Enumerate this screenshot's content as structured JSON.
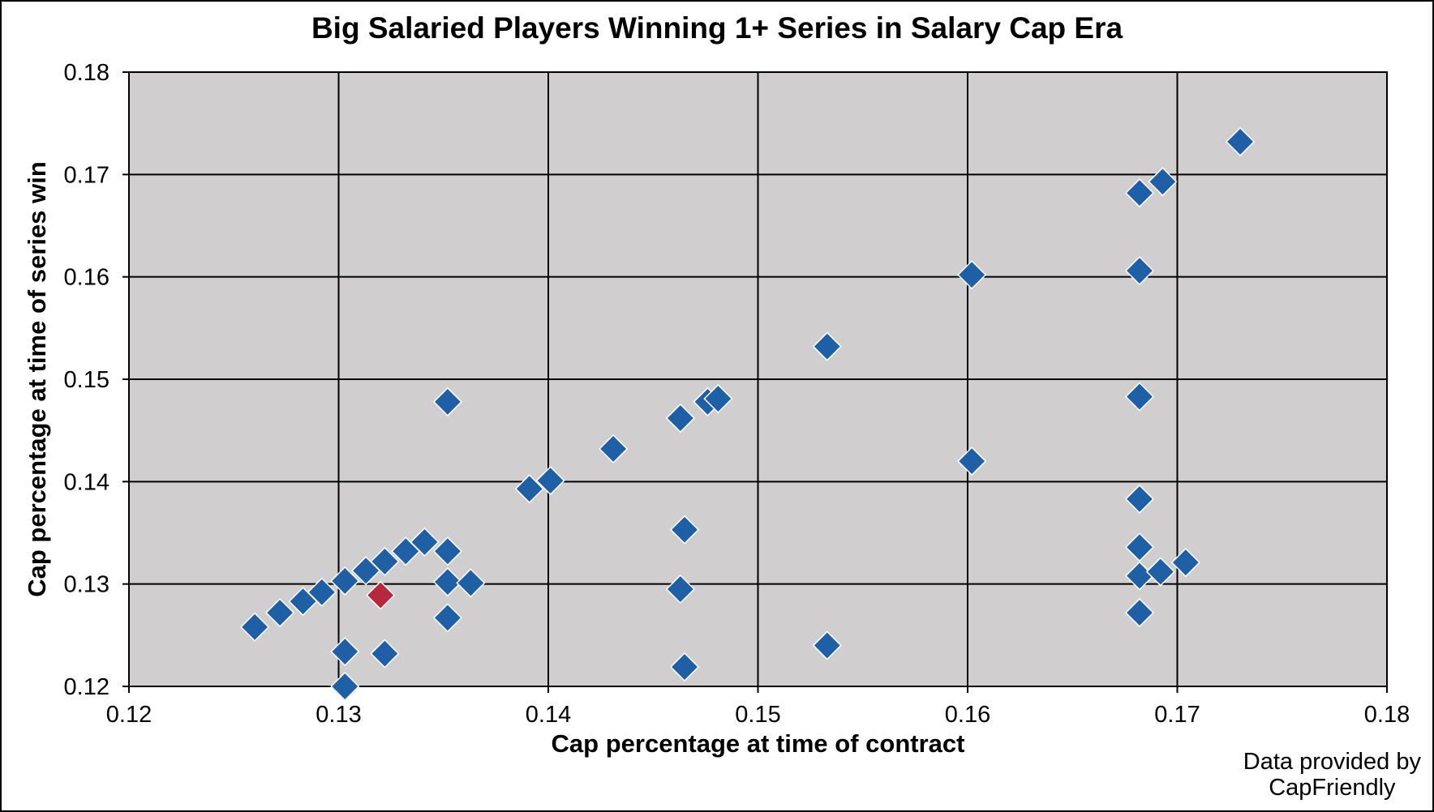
{
  "chart_data": {
    "type": "scatter",
    "title": "Big Salaried Players Winning 1+ Series in Salary Cap Era",
    "xlabel": "Cap percentage at time of contract",
    "ylabel": "Cap percentage at time of series win",
    "xlim": [
      0.12,
      0.18
    ],
    "ylim": [
      0.12,
      0.18
    ],
    "x_ticks": [
      "0.12",
      "0.13",
      "0.14",
      "0.15",
      "0.16",
      "0.17",
      "0.18"
    ],
    "y_ticks": [
      "0.12",
      "0.13",
      "0.14",
      "0.15",
      "0.16",
      "0.17",
      "0.18"
    ],
    "grid": true,
    "plot_background": "#d0cecf",
    "marker": "diamond",
    "series": [
      {
        "color": "#1f5fa6",
        "points": [
          [
            0.126,
            0.1258
          ],
          [
            0.1272,
            0.1272
          ],
          [
            0.1283,
            0.1283
          ],
          [
            0.1292,
            0.1292
          ],
          [
            0.1303,
            0.1303
          ],
          [
            0.1313,
            0.1313
          ],
          [
            0.1322,
            0.1322
          ],
          [
            0.1332,
            0.1332
          ],
          [
            0.1341,
            0.1341
          ],
          [
            0.1303,
            0.1234
          ],
          [
            0.1303,
            0.12
          ],
          [
            0.1322,
            0.1232
          ],
          [
            0.1352,
            0.1332
          ],
          [
            0.1352,
            0.1302
          ],
          [
            0.1363,
            0.1301
          ],
          [
            0.1352,
            0.1267
          ],
          [
            0.1352,
            0.1478
          ],
          [
            0.1391,
            0.1393
          ],
          [
            0.1401,
            0.1401
          ],
          [
            0.1431,
            0.1432
          ],
          [
            0.1463,
            0.1462
          ],
          [
            0.1476,
            0.1478
          ],
          [
            0.1481,
            0.1481
          ],
          [
            0.1465,
            0.1353
          ],
          [
            0.1463,
            0.1295
          ],
          [
            0.1465,
            0.1219
          ],
          [
            0.1533,
            0.1532
          ],
          [
            0.1533,
            0.124
          ],
          [
            0.1602,
            0.1602
          ],
          [
            0.1602,
            0.142
          ],
          [
            0.1682,
            0.1682
          ],
          [
            0.1693,
            0.1693
          ],
          [
            0.1682,
            0.1606
          ],
          [
            0.1682,
            0.1483
          ],
          [
            0.1682,
            0.1383
          ],
          [
            0.1682,
            0.1336
          ],
          [
            0.1682,
            0.1308
          ],
          [
            0.1682,
            0.1272
          ],
          [
            0.1692,
            0.1312
          ],
          [
            0.1704,
            0.1321
          ],
          [
            0.173,
            0.1732
          ]
        ]
      },
      {
        "color": "#b7283e",
        "points": [
          [
            0.132,
            0.1289
          ]
        ]
      }
    ]
  },
  "note_line1": "Data provided by",
  "note_line2": "CapFriendly"
}
